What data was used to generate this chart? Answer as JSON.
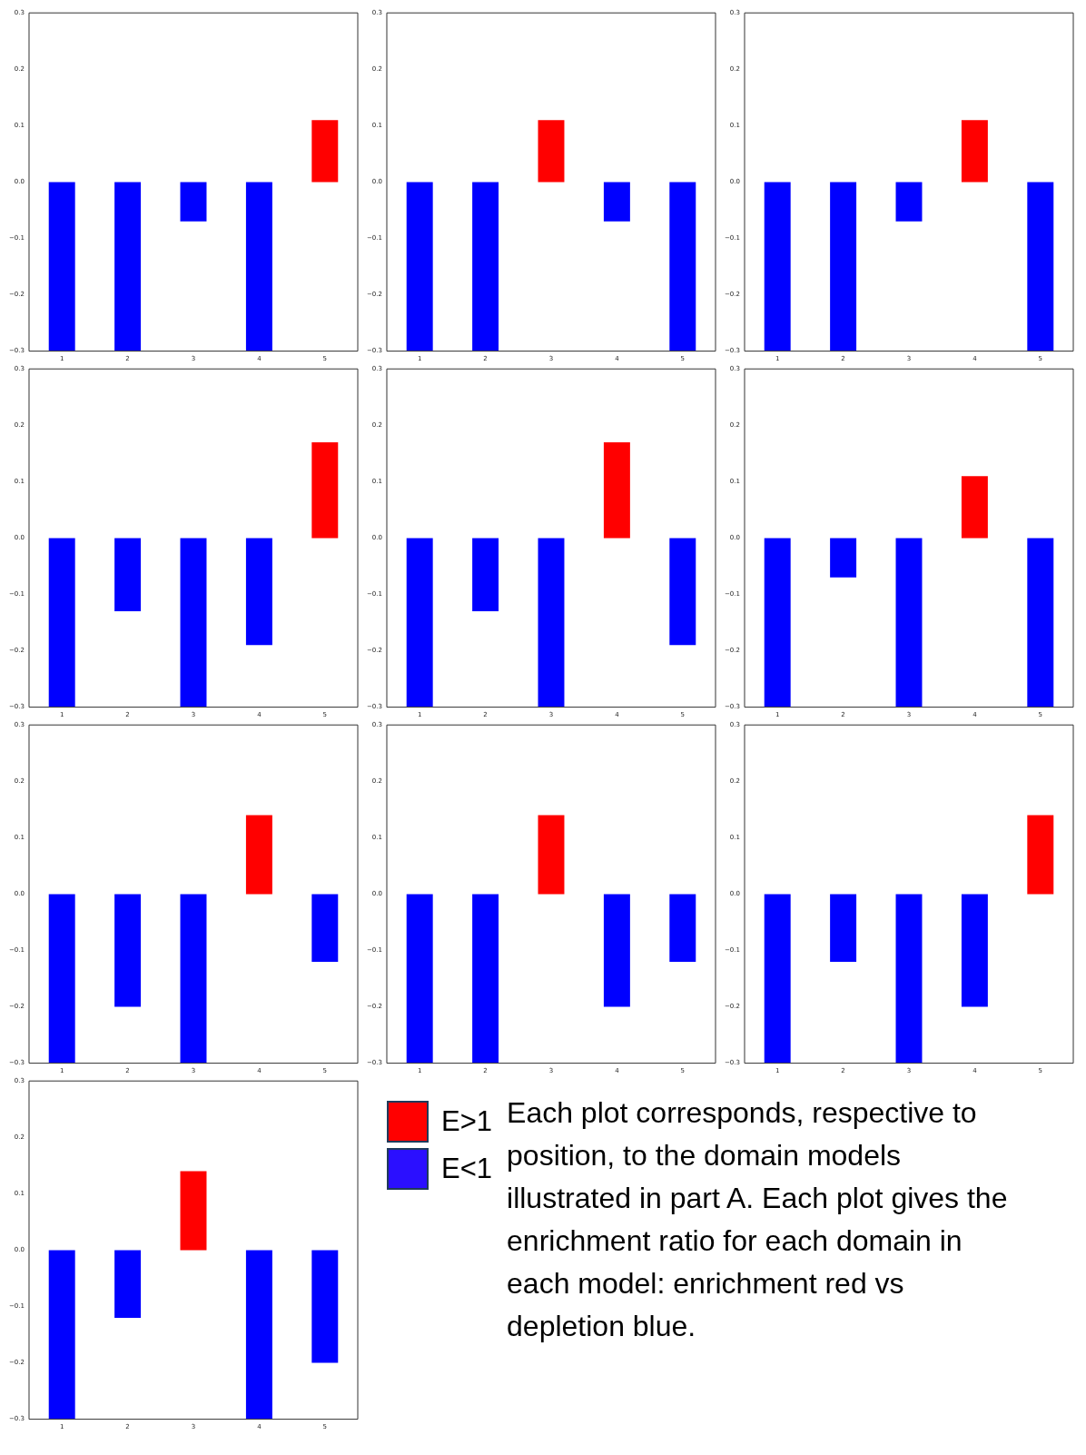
{
  "chart_data": [
    {
      "type": "bar",
      "categories": [
        "1",
        "2",
        "3",
        "4",
        "5"
      ],
      "values": [
        -0.3,
        -0.3,
        -0.07,
        -0.3,
        0.11
      ],
      "colors": [
        "#0000ff",
        "#0000ff",
        "#0000ff",
        "#0000ff",
        "#ff0000"
      ],
      "ylim": [
        -0.3,
        0.3
      ],
      "yticks": [
        {
          "value": -0.3,
          "label": "−0.3"
        },
        {
          "value": -0.2,
          "label": "−0.2"
        },
        {
          "value": -0.1,
          "label": "−0.1"
        },
        {
          "value": 0,
          "label": "0.0"
        },
        0.1,
        0.2,
        0.3
      ],
      "grid": false,
      "legend": false
    },
    {
      "type": "bar",
      "categories": [
        "1",
        "2",
        "3",
        "4",
        "5"
      ],
      "values": [
        -0.3,
        -0.3,
        0.11,
        -0.07,
        -0.3
      ],
      "colors": [
        "#0000ff",
        "#0000ff",
        "#ff0000",
        "#0000ff",
        "#0000ff"
      ],
      "ylim": [
        -0.3,
        0.3
      ],
      "yticks": [
        {
          "value": -0.3,
          "label": "−0.3"
        },
        {
          "value": -0.2,
          "label": "−0.2"
        },
        {
          "value": -0.1,
          "label": "−0.1"
        },
        {
          "value": 0,
          "label": "0.0"
        },
        0.1,
        0.2,
        0.3
      ],
      "grid": false,
      "legend": false
    },
    {
      "type": "bar",
      "categories": [
        "1",
        "2",
        "3",
        "4",
        "5"
      ],
      "values": [
        -0.3,
        -0.3,
        -0.07,
        0.11,
        -0.3
      ],
      "colors": [
        "#0000ff",
        "#0000ff",
        "#0000ff",
        "#ff0000",
        "#0000ff"
      ],
      "ylim": [
        -0.3,
        0.3
      ],
      "yticks": [
        {
          "value": -0.3,
          "label": "−0.3"
        },
        {
          "value": -0.2,
          "label": "−0.2"
        },
        {
          "value": -0.1,
          "label": "−0.1"
        },
        {
          "value": 0,
          "label": "0.0"
        },
        0.1,
        0.2,
        0.3
      ],
      "grid": false,
      "legend": false
    },
    {
      "type": "bar",
      "categories": [
        "1",
        "2",
        "3",
        "4",
        "5"
      ],
      "values": [
        -0.3,
        -0.13,
        -0.3,
        -0.19,
        0.17
      ],
      "colors": [
        "#0000ff",
        "#0000ff",
        "#0000ff",
        "#0000ff",
        "#ff0000"
      ],
      "ylim": [
        -0.3,
        0.3
      ],
      "yticks": [
        {
          "value": -0.3,
          "label": "−0.3"
        },
        {
          "value": -0.2,
          "label": "−0.2"
        },
        {
          "value": -0.1,
          "label": "−0.1"
        },
        {
          "value": 0,
          "label": "0.0"
        },
        0.1,
        0.2,
        0.3
      ],
      "grid": false,
      "legend": false
    },
    {
      "type": "bar",
      "categories": [
        "1",
        "2",
        "3",
        "4",
        "5"
      ],
      "values": [
        -0.3,
        -0.13,
        -0.3,
        0.17,
        -0.19
      ],
      "colors": [
        "#0000ff",
        "#0000ff",
        "#0000ff",
        "#ff0000",
        "#0000ff"
      ],
      "ylim": [
        -0.3,
        0.3
      ],
      "yticks": [
        {
          "value": -0.3,
          "label": "−0.3"
        },
        {
          "value": -0.2,
          "label": "−0.2"
        },
        {
          "value": -0.1,
          "label": "−0.1"
        },
        {
          "value": 0,
          "label": "0.0"
        },
        0.1,
        0.2,
        0.3
      ],
      "grid": false,
      "legend": false
    },
    {
      "type": "bar",
      "categories": [
        "1",
        "2",
        "3",
        "4",
        "5"
      ],
      "values": [
        -0.3,
        -0.07,
        -0.3,
        0.11,
        -0.3
      ],
      "colors": [
        "#0000ff",
        "#0000ff",
        "#0000ff",
        "#ff0000",
        "#0000ff"
      ],
      "ylim": [
        -0.3,
        0.3
      ],
      "yticks": [
        {
          "value": -0.3,
          "label": "−0.3"
        },
        {
          "value": -0.2,
          "label": "−0.2"
        },
        {
          "value": -0.1,
          "label": "−0.1"
        },
        {
          "value": 0,
          "label": "0.0"
        },
        0.1,
        0.2,
        0.3
      ],
      "grid": false,
      "legend": false
    },
    {
      "type": "bar",
      "categories": [
        "1",
        "2",
        "3",
        "4",
        "5"
      ],
      "values": [
        -0.3,
        -0.2,
        -0.3,
        0.14,
        -0.12
      ],
      "colors": [
        "#0000ff",
        "#0000ff",
        "#0000ff",
        "#ff0000",
        "#0000ff"
      ],
      "ylim": [
        -0.3,
        0.3
      ],
      "yticks": [
        {
          "value": -0.3,
          "label": "−0.3"
        },
        {
          "value": -0.2,
          "label": "−0.2"
        },
        {
          "value": -0.1,
          "label": "−0.1"
        },
        {
          "value": 0,
          "label": "0.0"
        },
        0.1,
        0.2,
        0.3
      ],
      "grid": false,
      "legend": false
    },
    {
      "type": "bar",
      "categories": [
        "1",
        "2",
        "3",
        "4",
        "5"
      ],
      "values": [
        -0.3,
        -0.3,
        0.14,
        -0.2,
        -0.12
      ],
      "colors": [
        "#0000ff",
        "#0000ff",
        "#ff0000",
        "#0000ff",
        "#0000ff"
      ],
      "ylim": [
        -0.3,
        0.3
      ],
      "yticks": [
        {
          "value": -0.3,
          "label": "−0.3"
        },
        {
          "value": -0.2,
          "label": "−0.2"
        },
        {
          "value": -0.1,
          "label": "−0.1"
        },
        {
          "value": 0,
          "label": "0.0"
        },
        0.1,
        0.2,
        0.3
      ],
      "grid": false,
      "legend": false
    },
    {
      "type": "bar",
      "categories": [
        "1",
        "2",
        "3",
        "4",
        "5"
      ],
      "values": [
        -0.3,
        -0.12,
        -0.3,
        -0.2,
        0.14
      ],
      "colors": [
        "#0000ff",
        "#0000ff",
        "#0000ff",
        "#0000ff",
        "#ff0000"
      ],
      "ylim": [
        -0.3,
        0.3
      ],
      "yticks": [
        {
          "value": -0.3,
          "label": "−0.3"
        },
        {
          "value": -0.2,
          "label": "−0.2"
        },
        {
          "value": -0.1,
          "label": "−0.1"
        },
        {
          "value": 0,
          "label": "0.0"
        },
        0.1,
        0.2,
        0.3
      ],
      "grid": false,
      "legend": false
    },
    {
      "type": "bar",
      "categories": [
        "1",
        "2",
        "3",
        "4",
        "5"
      ],
      "values": [
        -0.3,
        -0.12,
        0.14,
        -0.3,
        -0.2
      ],
      "colors": [
        "#0000ff",
        "#0000ff",
        "#ff0000",
        "#0000ff",
        "#0000ff"
      ],
      "ylim": [
        -0.3,
        0.3
      ],
      "yticks": [
        {
          "value": -0.3,
          "label": "−0.3"
        },
        {
          "value": -0.2,
          "label": "−0.2"
        },
        {
          "value": -0.1,
          "label": "−0.1"
        },
        {
          "value": 0,
          "label": "0.0"
        },
        0.1,
        0.2,
        0.3
      ],
      "grid": false,
      "legend": false
    },
    {
      "type": "other",
      "series": [
        {
          "name": "E>1",
          "color": "#ff0000"
        },
        {
          "name": "E<1",
          "color": "#2b0fff"
        }
      ],
      "legend": "left",
      "annotations": [
        "Each plot corresponds, respective to position, to the domain models illustrated in part A. Each plot gives the enrichment ratio for each domain in each model: enrichment red vs depletion blue."
      ]
    }
  ]
}
